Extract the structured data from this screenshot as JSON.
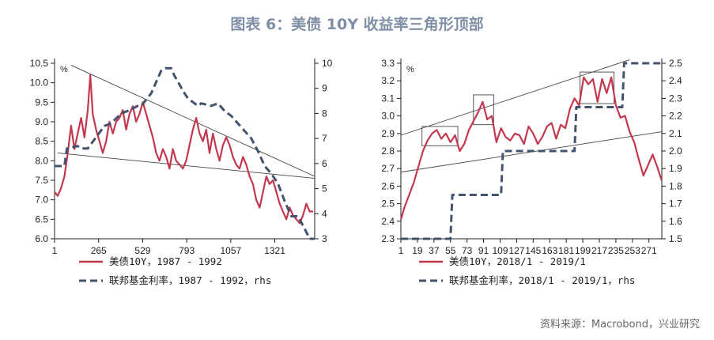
{
  "title": "图表 6：美债 10Y 收益率三角形顶部",
  "source": "资料来源：Macrobond，兴业研究",
  "colors": {
    "series_red": "#c4384f",
    "series_navy": "#44536d",
    "annotation": "#444444"
  },
  "chart_data": [
    {
      "type": "line",
      "unit_label": "%",
      "x_ticks": [
        "1",
        "265",
        "529",
        "793",
        "1057",
        "1321"
      ],
      "x_range": [
        1,
        1560
      ],
      "ylim_left": [
        6.0,
        10.5
      ],
      "ylim_right": [
        3,
        10
      ],
      "y_ticks_left": [
        "10.5",
        "10.0",
        "9.5",
        "9.0",
        "8.5",
        "8.0",
        "7.5",
        "7.0",
        "6.5",
        "6.0"
      ],
      "y_ticks_right": [
        "10",
        "9",
        "8",
        "7",
        "6",
        "5",
        "4",
        "3"
      ],
      "series": [
        {
          "name": "美债10Y，1987 - 1992",
          "axis": "left",
          "style": "solid",
          "x": [
            1,
            20,
            40,
            60,
            80,
            100,
            120,
            140,
            160,
            180,
            200,
            215,
            230,
            250,
            270,
            290,
            310,
            330,
            350,
            370,
            390,
            410,
            430,
            450,
            470,
            490,
            510,
            530,
            550,
            570,
            590,
            610,
            630,
            650,
            670,
            690,
            710,
            730,
            750,
            770,
            790,
            810,
            830,
            850,
            870,
            890,
            910,
            930,
            950,
            970,
            990,
            1010,
            1030,
            1050,
            1070,
            1090,
            1110,
            1130,
            1150,
            1170,
            1190,
            1210,
            1230,
            1250,
            1270,
            1290,
            1310,
            1330,
            1350,
            1370,
            1390,
            1410,
            1430,
            1450,
            1470,
            1490,
            1510,
            1530,
            1550
          ],
          "values": [
            7.2,
            7.1,
            7.3,
            7.6,
            8.2,
            8.9,
            8.3,
            8.7,
            9.1,
            8.6,
            9.3,
            10.2,
            9.2,
            8.8,
            8.5,
            8.2,
            8.5,
            9.0,
            8.7,
            9.0,
            9.1,
            9.3,
            8.8,
            9.2,
            9.4,
            9.0,
            9.2,
            9.5,
            9.2,
            8.9,
            8.6,
            8.2,
            8.0,
            8.3,
            8.1,
            7.8,
            8.3,
            8.0,
            7.9,
            7.8,
            8.0,
            8.4,
            8.8,
            9.1,
            8.7,
            8.5,
            8.8,
            8.2,
            8.7,
            8.3,
            8.0,
            8.4,
            8.6,
            8.4,
            8.1,
            7.9,
            7.8,
            8.1,
            7.9,
            7.6,
            7.4,
            7.0,
            6.8,
            7.2,
            7.6,
            7.4,
            7.5,
            7.2,
            6.9,
            6.7,
            6.5,
            6.8,
            6.6,
            6.5,
            6.4,
            6.6,
            6.9,
            6.7,
            6.7
          ]
        },
        {
          "name": "联邦基金利率，1987 - 1992，rhs",
          "axis": "right",
          "style": "dashed",
          "x": [
            1,
            60,
            75,
            140,
            160,
            200,
            300,
            340,
            400,
            440,
            500,
            520,
            580,
            640,
            660,
            700,
            720,
            780,
            800,
            860,
            880,
            940,
            980,
            1020,
            1060,
            1100,
            1140,
            1180,
            1220,
            1260,
            1300,
            1340,
            1380,
            1420,
            1460,
            1500,
            1530,
            1560
          ],
          "values": [
            5.9,
            5.9,
            6.6,
            6.7,
            6.6,
            6.6,
            7.5,
            7.6,
            8.0,
            8.1,
            8.3,
            8.3,
            8.8,
            9.7,
            9.8,
            9.8,
            9.5,
            8.8,
            8.6,
            8.3,
            8.4,
            8.3,
            8.4,
            8.1,
            7.9,
            7.6,
            7.3,
            7.0,
            6.5,
            5.9,
            5.6,
            5.2,
            4.5,
            3.9,
            3.9,
            3.4,
            3.0,
            3.0
          ]
        }
      ],
      "trend_lines": [
        {
          "x": [
            100,
            1560
          ],
          "y": [
            10.45,
            7.6
          ],
          "axis": "left"
        },
        {
          "x": [
            20,
            1560
          ],
          "y": [
            8.2,
            7.55
          ],
          "axis": "left"
        }
      ]
    },
    {
      "type": "line",
      "unit_label": "%",
      "x_ticks": [
        "1",
        "19",
        "37",
        "55",
        "73",
        "91",
        "109",
        "127",
        "145",
        "163",
        "181",
        "199",
        "217",
        "235",
        "253",
        "271"
      ],
      "x_range": [
        1,
        285
      ],
      "ylim_left": [
        2.3,
        3.3
      ],
      "ylim_right": [
        1.5,
        2.5
      ],
      "y_ticks_left": [
        "3.3",
        "3.2",
        "3.1",
        "3.0",
        "2.9",
        "2.8",
        "2.7",
        "2.6",
        "2.5",
        "2.4",
        "2.3"
      ],
      "y_ticks_right": [
        "2.5",
        "2.4",
        "2.3",
        "2.2",
        "2.1",
        "2.0",
        "1.9",
        "1.8",
        "1.7",
        "1.6",
        "1.5"
      ],
      "series": [
        {
          "name": "美债10Y，2018/1 - 2019/1",
          "axis": "left",
          "style": "solid",
          "x": [
            1,
            5,
            10,
            15,
            20,
            25,
            30,
            35,
            40,
            45,
            50,
            55,
            60,
            65,
            70,
            75,
            80,
            85,
            90,
            95,
            100,
            105,
            110,
            115,
            120,
            125,
            130,
            135,
            140,
            145,
            150,
            155,
            160,
            165,
            170,
            175,
            180,
            185,
            190,
            195,
            200,
            205,
            210,
            215,
            220,
            225,
            230,
            235,
            240,
            245,
            250,
            255,
            260,
            265,
            270,
            275,
            280,
            285
          ],
          "values": [
            2.41,
            2.48,
            2.55,
            2.62,
            2.71,
            2.8,
            2.86,
            2.9,
            2.92,
            2.87,
            2.9,
            2.85,
            2.89,
            2.8,
            2.84,
            2.92,
            2.97,
            3.02,
            3.08,
            2.98,
            3.0,
            2.85,
            2.93,
            2.88,
            2.86,
            2.9,
            2.89,
            2.84,
            2.94,
            2.9,
            2.84,
            2.88,
            2.94,
            2.96,
            2.87,
            2.95,
            2.93,
            3.04,
            3.1,
            3.06,
            3.22,
            3.18,
            3.21,
            3.08,
            3.21,
            3.13,
            3.22,
            3.06,
            2.99,
            3.0,
            2.91,
            2.85,
            2.75,
            2.66,
            2.72,
            2.78,
            2.71,
            2.63
          ]
        },
        {
          "name": "联邦基金利率，2018/1 - 2019/1，rhs",
          "axis": "right",
          "style": "dashed",
          "x": [
            1,
            55,
            57,
            110,
            112,
            190,
            192,
            242,
            244,
            285
          ],
          "values": [
            1.5,
            1.5,
            1.75,
            1.75,
            2.0,
            2.0,
            2.25,
            2.25,
            2.5,
            2.5
          ]
        }
      ],
      "trend_lines": [
        {
          "x": [
            1,
            250
          ],
          "y": [
            2.89,
            3.32
          ],
          "axis": "left"
        },
        {
          "x": [
            1,
            285
          ],
          "y": [
            2.68,
            2.91
          ],
          "axis": "left"
        }
      ],
      "highlight_boxes": [
        {
          "x": [
            24,
            63
          ],
          "y": [
            2.83,
            2.94
          ]
        },
        {
          "x": [
            80,
            102
          ],
          "y": [
            2.95,
            3.12
          ]
        },
        {
          "x": [
            196,
            233
          ],
          "y": [
            3.07,
            3.25
          ]
        }
      ]
    }
  ]
}
